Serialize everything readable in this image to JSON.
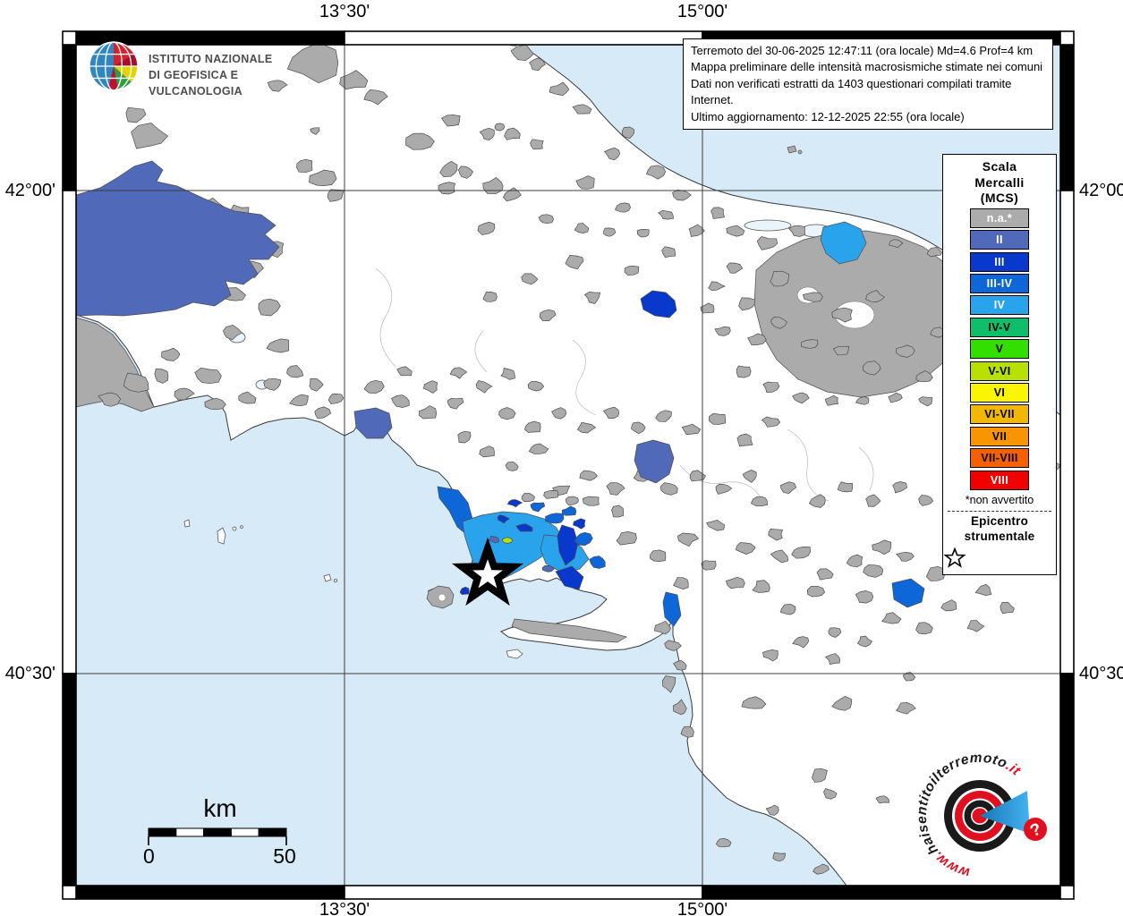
{
  "ingv": {
    "line1": "ISTITUTO NAZIONALE",
    "line2": "DI GEOFISICA E VULCANOLOGIA"
  },
  "title_box": {
    "line1": "Terremoto del 30-06-2025 12:47:11 (ora locale) Md=4.6 Prof=4 km",
    "line2": "Mappa preliminare delle intensità macrosismiche stimate nei comuni",
    "line3": "Dati non verificati estratti da 1403 questionari compilati tramite Internet.",
    "line4": "Ultimo aggiornamento: 12-12-2025 22:55 (ora locale)"
  },
  "coords": {
    "lon_w": "13°30'",
    "lon_e": "15°00'",
    "lat_n": "42°00'",
    "lat_s": "40°30'"
  },
  "legend": {
    "title_lines": [
      "Scala",
      "Mercalli",
      "(MCS)"
    ],
    "items": [
      {
        "label": "n.a.*",
        "color": "#ABABAB",
        "text": "#FFFFFF"
      },
      {
        "label": "II",
        "color": "#5069B9",
        "text": "#FFFFFF"
      },
      {
        "label": "III",
        "color": "#0838CC",
        "text": "#FFFFFF"
      },
      {
        "label": "III-IV",
        "color": "#0E67D8",
        "text": "#FFFFFF"
      },
      {
        "label": "IV",
        "color": "#29A3EC",
        "text": "#FFFFFF"
      },
      {
        "label": "IV-V",
        "color": "#0FBE6A",
        "text": "#000000"
      },
      {
        "label": "V",
        "color": "#33DF00",
        "text": "#000000"
      },
      {
        "label": "V-VI",
        "color": "#B8E000",
        "text": "#000000"
      },
      {
        "label": "VI",
        "color": "#FAF500",
        "text": "#000000"
      },
      {
        "label": "VI-VII",
        "color": "#F2B800",
        "text": "#000000"
      },
      {
        "label": "VII",
        "color": "#F89500",
        "text": "#000000"
      },
      {
        "label": "VII-VIII",
        "color": "#F56000",
        "text": "#000000"
      },
      {
        "label": "VIII",
        "color": "#F20000",
        "text": "#FFFFFF"
      }
    ],
    "footnote": "*non avvertito",
    "epicenter": {
      "line1": "Epicentro",
      "line2": "strumentale"
    }
  },
  "scalebar": {
    "unit": "km",
    "start": "0",
    "end": "50"
  },
  "watermark": {
    "prefix": "www.",
    "name": "haisentitoilterremoto",
    "suffix": ".it",
    "question": "?",
    "red": "#E01020",
    "black": "#1A1A1A",
    "blue": "#2196D6"
  },
  "map": {
    "sea": "#D7EAF8",
    "lagoon": "#E9F4FB",
    "land": "#FFFFFF",
    "boundary": "#4D4D4D",
    "grid": "#3C3C3C"
  }
}
